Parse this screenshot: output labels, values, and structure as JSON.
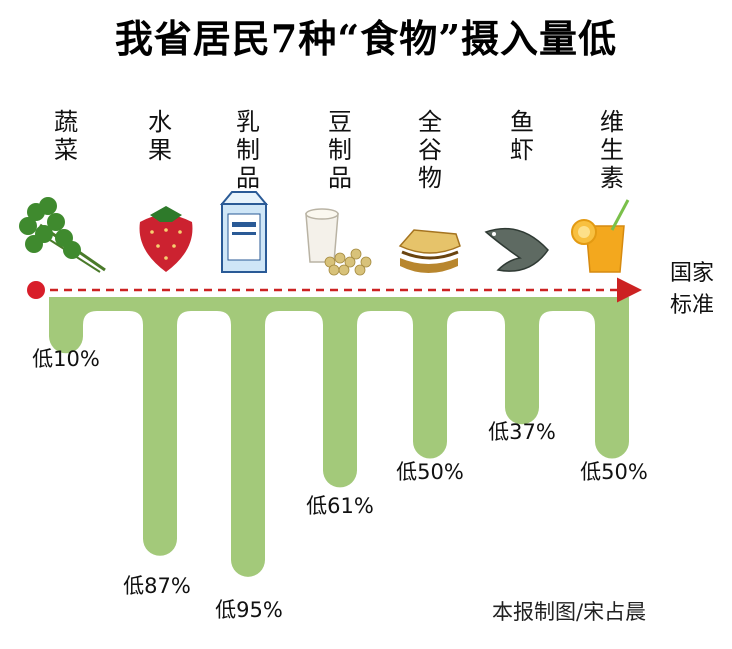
{
  "chart_data": {
    "type": "bar",
    "title": "我省居民7种“食物”摄入量低",
    "categories": [
      "蔬菜",
      "水果",
      "乳制品",
      "豆制品",
      "全谷物",
      "鱼虾",
      "维生素"
    ],
    "values": [
      10,
      87,
      95,
      61,
      50,
      37,
      50
    ],
    "value_labels": [
      "低10%",
      "低87%",
      "低95%",
      "低61%",
      "低50%",
      "低37%",
      "低50%"
    ],
    "reference_line": {
      "label": "国家标准",
      "value": 0
    },
    "ylim": [
      0,
      100
    ],
    "orientation": "downward",
    "grid": false,
    "legend": "none"
  },
  "icons": [
    "cilantro-icon",
    "strawberry-icon",
    "milk-carton-icon",
    "soy-milk-icon",
    "bread-icon",
    "fish-icon",
    "juice-icon"
  ],
  "credit": "本报制图/宋占晨",
  "colors": {
    "bar": "#a3c97a",
    "reference_line": "#cc2222",
    "dot": "#d81e2a"
  }
}
